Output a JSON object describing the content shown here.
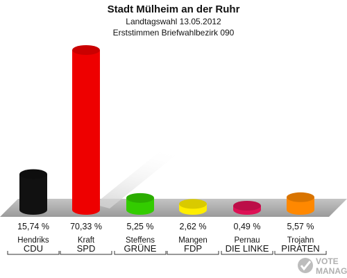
{
  "chart_data": {
    "type": "bar",
    "title": "Stadt Mülheim an der Ruhr",
    "subtitle_1": "Landtagswahl 13.05.2012",
    "subtitle_2": "Erststimmen Briefwahlbezirk 090",
    "categories": [
      "CDU",
      "SPD",
      "GRÜNE",
      "FDP",
      "DIE LINKE",
      "PIRATEN"
    ],
    "candidates": [
      "Hendriks",
      "Kraft",
      "Steffens",
      "Mangen",
      "Pernau",
      "Trojahn"
    ],
    "values": [
      15.74,
      70.33,
      5.25,
      2.62,
      0.49,
      5.57
    ],
    "value_labels": [
      "15,74 %",
      "70,33 %",
      "5,25 %",
      "2,62 %",
      "0,49 %",
      "5,57 %"
    ],
    "colors": [
      "#111111",
      "#ee0000",
      "#33cc00",
      "#ffee00",
      "#dd1155",
      "#ff8800"
    ],
    "ylim": [
      0,
      100
    ]
  },
  "watermark": {
    "line1": "VOTE",
    "line2": "MANAGER"
  }
}
